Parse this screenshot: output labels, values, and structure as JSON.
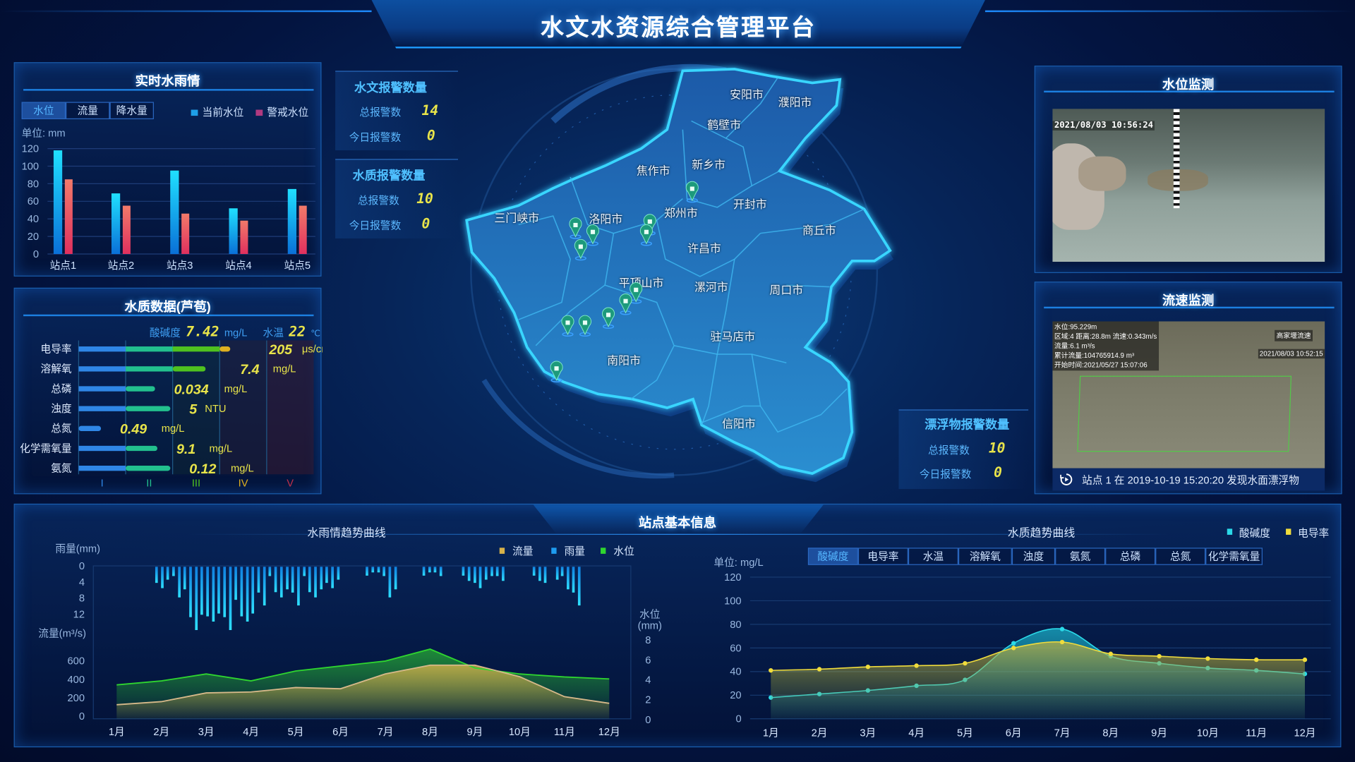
{
  "header": {
    "title": "水文水资源综合管理平台"
  },
  "colors": {
    "accent": "#1e8cff",
    "current_level": "#1ec8ff",
    "warning_level": "#ef4f6e",
    "digit": "#e8e44a",
    "flow": "#d7b24a",
    "rain": "#1ec0ff",
    "water_level": "#2fd52f",
    "ph": "#2bd9e8",
    "conductivity": "#f0dc3c"
  },
  "realtime": {
    "title": "实时水雨情",
    "tabs": [
      "水位",
      "流量",
      "降水量"
    ],
    "active_tab": 0,
    "unit": "单位: mm",
    "chart_data": {
      "type": "bar",
      "categories": [
        "站点1",
        "站点2",
        "站点3",
        "站点4",
        "站点5"
      ],
      "series": [
        {
          "name": "当前水位",
          "values": [
            118,
            69,
            95,
            52,
            74
          ]
        },
        {
          "name": "警戒水位",
          "values": [
            85,
            55,
            46,
            38,
            55
          ]
        }
      ],
      "ylim": [
        0,
        120
      ],
      "yticks": [
        0,
        20,
        40,
        60,
        80,
        100,
        120
      ],
      "legend": "top-right",
      "grid": true
    }
  },
  "quality": {
    "title": "水质数据(芦苞)",
    "ph_label": "酸碱度",
    "ph_value": "7.42",
    "ph_unit": "mg/L",
    "temp_label": "水温",
    "temp_value": "22",
    "temp_unit": "℃",
    "rows": [
      {
        "label": "电导率",
        "value": "205",
        "unit": "μs/cm",
        "fill_percent": 64.5
      },
      {
        "label": "溶解氧",
        "value": "7.4",
        "unit": "mg/L",
        "fill_percent": 54
      },
      {
        "label": "总磷",
        "value": "0.034",
        "unit": "mg/L",
        "fill_percent": 32.5
      },
      {
        "label": "浊度",
        "value": "5",
        "unit": "NTU",
        "fill_percent": 39
      },
      {
        "label": "总氮",
        "value": "0.49",
        "unit": "mg/L",
        "fill_percent": 9.5
      },
      {
        "label": "化学需氧量",
        "value": "9.1",
        "unit": "mg/L",
        "fill_percent": 33.5
      },
      {
        "label": "氨氮",
        "value": "0.12",
        "unit": "mg/L",
        "fill_percent": 39
      }
    ],
    "grades": [
      "I",
      "II",
      "III",
      "IV",
      "V"
    ],
    "grade_colors": [
      "#2f86e6",
      "#22c08e",
      "#4fc21f",
      "#e0b020",
      "#c0304a"
    ]
  },
  "alarms": {
    "hydro": {
      "title": "水文报警数量",
      "total_label": "总报警数",
      "total": "14",
      "today_label": "今日报警数",
      "today": "0"
    },
    "quality": {
      "title": "水质报警数量",
      "total_label": "总报警数",
      "total": "10",
      "today_label": "今日报警数",
      "today": "0"
    },
    "floating": {
      "title": "漂浮物报警数量",
      "total_label": "总报警数",
      "total": "10",
      "today_label": "今日报警数",
      "today": "0"
    }
  },
  "map": {
    "cities": [
      "安阳市",
      "濮阳市",
      "鹤壁市",
      "新乡市",
      "焦作市",
      "郑州市",
      "开封市",
      "三门峡市",
      "洛阳市",
      "商丘市",
      "许昌市",
      "平顶山市",
      "漯河市",
      "周口市",
      "驻马店市",
      "南阳市",
      "信阳市"
    ],
    "station_icon": "station-pin-icon"
  },
  "water_level_monitor": {
    "title": "水位监测",
    "timestamp": "2021/08/03 10:56:24"
  },
  "flow_monitor": {
    "title": "流速监测",
    "overlay": [
      "水位:95.229m",
      "区域:4 距离:28.8m 流速:0.343m/s",
      "流量:6.1 m³/s",
      "累计流量:104765914.9 m³",
      "开始时间:2021/05/27 15:07:06"
    ],
    "site": "高家堰流速",
    "timestamp": "2021/08/03 10:52:15",
    "caption": "站点 1 在 2019-10-19  15:20:20 发现水面漂浮物"
  },
  "station_info": {
    "title": "站点基本信息",
    "rain_chart": {
      "title": "水雨情趋势曲线",
      "type": "bar+area",
      "legend": [
        "流量",
        "雨量",
        "水位"
      ],
      "categories": [
        "1月",
        "2月",
        "3月",
        "4月",
        "5月",
        "6月",
        "7月",
        "8月",
        "9月",
        "10月",
        "11月",
        "12月"
      ],
      "rain_label": "雨量(mm)",
      "rain_ticks": [
        0,
        4,
        8,
        12
      ],
      "flow_label": "流量(m³/s)",
      "flow_ticks": [
        0,
        200,
        400,
        600
      ],
      "level_label": "水位(mm)",
      "level_ticks": [
        0,
        2,
        4,
        6,
        8
      ],
      "flow": [
        125,
        158,
        253,
        263,
        311,
        298,
        459,
        554,
        554,
        429,
        212,
        140
      ],
      "water_level": [
        3.5,
        3.9,
        4.6,
        3.9,
        4.9,
        5.4,
        5.9,
        7.1,
        5.2,
        4.6,
        4.3,
        4.1
      ],
      "rain": [
        [
          1.89,
          4
        ],
        [
          2.02,
          5.3
        ],
        [
          2.14,
          3.2
        ],
        [
          2.27,
          2.3
        ],
        [
          2.4,
          7.6
        ],
        [
          2.52,
          5.6
        ],
        [
          2.65,
          12.5
        ],
        [
          2.78,
          15.7
        ],
        [
          2.9,
          11.9
        ],
        [
          3.03,
          12.3
        ],
        [
          3.16,
          13.6
        ],
        [
          3.28,
          11.6
        ],
        [
          3.41,
          12.5
        ],
        [
          3.54,
          15.7
        ],
        [
          3.66,
          8.2
        ],
        [
          3.79,
          12.3
        ],
        [
          3.92,
          13.6
        ],
        [
          4.04,
          11.6
        ],
        [
          4.17,
          6.4
        ],
        [
          4.3,
          9.6
        ],
        [
          4.42,
          2.3
        ],
        [
          4.55,
          6.3
        ],
        [
          4.68,
          7.6
        ],
        [
          4.81,
          5.6
        ],
        [
          4.93,
          6.4
        ],
        [
          5.06,
          9.6
        ],
        [
          5.19,
          2.3
        ],
        [
          5.31,
          6.3
        ],
        [
          5.44,
          7.6
        ],
        [
          5.57,
          5.6
        ],
        [
          5.69,
          4
        ],
        [
          5.82,
          5.3
        ],
        [
          5.95,
          3.2
        ],
        [
          6.59,
          2.2
        ],
        [
          6.72,
          1.4
        ],
        [
          6.85,
          1.4
        ],
        [
          6.97,
          2.3
        ],
        [
          7.1,
          7.6
        ],
        [
          7.23,
          5.6
        ],
        [
          7.86,
          2.2
        ],
        [
          7.99,
          1.4
        ],
        [
          8.11,
          1.4
        ],
        [
          8.24,
          2.3
        ],
        [
          8.74,
          2.2
        ],
        [
          8.87,
          3.5
        ],
        [
          9.0,
          4
        ],
        [
          9.12,
          5.3
        ],
        [
          9.25,
          3.2
        ],
        [
          9.38,
          2.3
        ],
        [
          9.5,
          2.3
        ],
        [
          9.63,
          3.5
        ],
        [
          10.32,
          2.2
        ],
        [
          10.45,
          3.5
        ],
        [
          10.57,
          4
        ],
        [
          10.84,
          3.2
        ],
        [
          10.95,
          2.3
        ],
        [
          11.08,
          5.6
        ],
        [
          11.2,
          6.4
        ],
        [
          11.33,
          9.6
        ]
      ]
    },
    "quality_chart": {
      "title": "水质趋势曲线",
      "type": "area",
      "unit": "单位: mg/L",
      "tabs": [
        "酸碱度",
        "电导率",
        "水温",
        "溶解氧",
        "浊度",
        "氨氮",
        "总磷",
        "总氮",
        "化学需氧量"
      ],
      "active_tab": 0,
      "categories": [
        "1月",
        "2月",
        "3月",
        "4月",
        "5月",
        "6月",
        "7月",
        "8月",
        "9月",
        "10月",
        "11月",
        "12月"
      ],
      "ylim": [
        0,
        120
      ],
      "yticks": [
        0,
        20,
        40,
        60,
        80,
        100,
        120
      ],
      "series": [
        {
          "name": "酸碱度",
          "values": [
            18,
            21,
            24,
            28,
            33,
            64,
            76,
            53,
            47,
            43,
            41,
            38
          ]
        },
        {
          "name": "电导率",
          "values": [
            41,
            42,
            44,
            45,
            47,
            60,
            65,
            55,
            53,
            51,
            50,
            50
          ]
        }
      ]
    }
  }
}
